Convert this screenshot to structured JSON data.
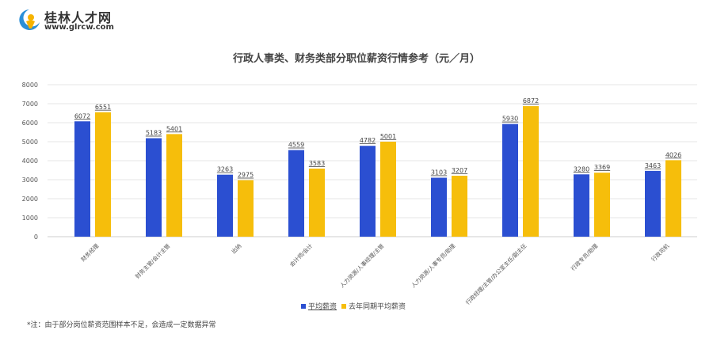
{
  "logo": {
    "name": "桂林人才网",
    "url": "www.glrcw.com"
  },
  "colors": {
    "avg": "#2b4fd1",
    "last": "#f6be0b"
  },
  "note": "*注：由于部分岗位薪资范围样本不足，会造成一定数据异常",
  "chart_data": {
    "type": "bar",
    "title": "行政人事类、财务类部分职位薪资行情参考（元／月）",
    "categories": [
      "财务经理",
      "财务主管/会计主管",
      "出纳",
      "会计师/会计",
      "人力资源/人事经理/主管",
      "人力资源/人事专员/助理",
      "行政经理/主管/办公室主任/副主任",
      "行政专员/助理",
      "行政司机"
    ],
    "series": [
      {
        "name": "平均薪资",
        "values": [
          6072,
          5183,
          3263,
          4559,
          4782,
          3103,
          5930,
          3280,
          3463
        ]
      },
      {
        "name": "去年同期平均薪资",
        "values": [
          6551,
          5401,
          2975,
          3583,
          5001,
          3207,
          6872,
          3369,
          4026
        ]
      }
    ],
    "ylim": [
      0,
      8000
    ],
    "yticks": [
      0,
      1000,
      2000,
      3000,
      4000,
      5000,
      6000,
      7000,
      8000
    ],
    "grid": true,
    "legend": "bottom"
  }
}
